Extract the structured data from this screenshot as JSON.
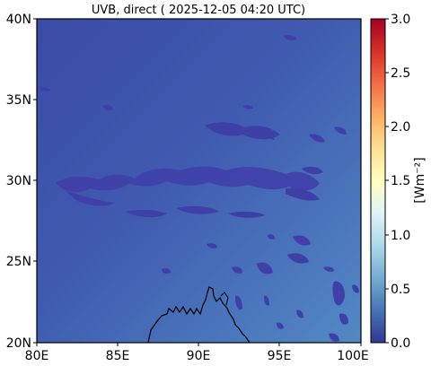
{
  "title": "UVB, direct ( 2025-12-05 04:20 UTC)",
  "map": {
    "lat_ticks": [
      "40N",
      "35N",
      "30N",
      "25N",
      "20N"
    ],
    "lon_ticks": [
      "80E",
      "85E",
      "90E",
      "95E",
      "100E"
    ],
    "lat_range": [
      20,
      40
    ],
    "lon_range": [
      80,
      100
    ],
    "field_colors": {
      "low": "#3b4aa6",
      "base": "#3f5bb0",
      "high": "#5289c4"
    },
    "cloud_color": "#3f3fa8",
    "coast_color": "#000000"
  },
  "colorbar": {
    "label": "[Wm⁻²]",
    "ticks": [
      "0.0",
      "0.5",
      "1.0",
      "1.5",
      "2.0",
      "2.5",
      "3.0"
    ],
    "range": [
      0,
      3
    ],
    "colormap": "RdYlBu_r",
    "colors": [
      "#313695",
      "#4575b4",
      "#74add1",
      "#abd9e9",
      "#e0f3f8",
      "#ffffbf",
      "#fee090",
      "#fdae61",
      "#f46d43",
      "#d73027",
      "#a50026"
    ]
  }
}
